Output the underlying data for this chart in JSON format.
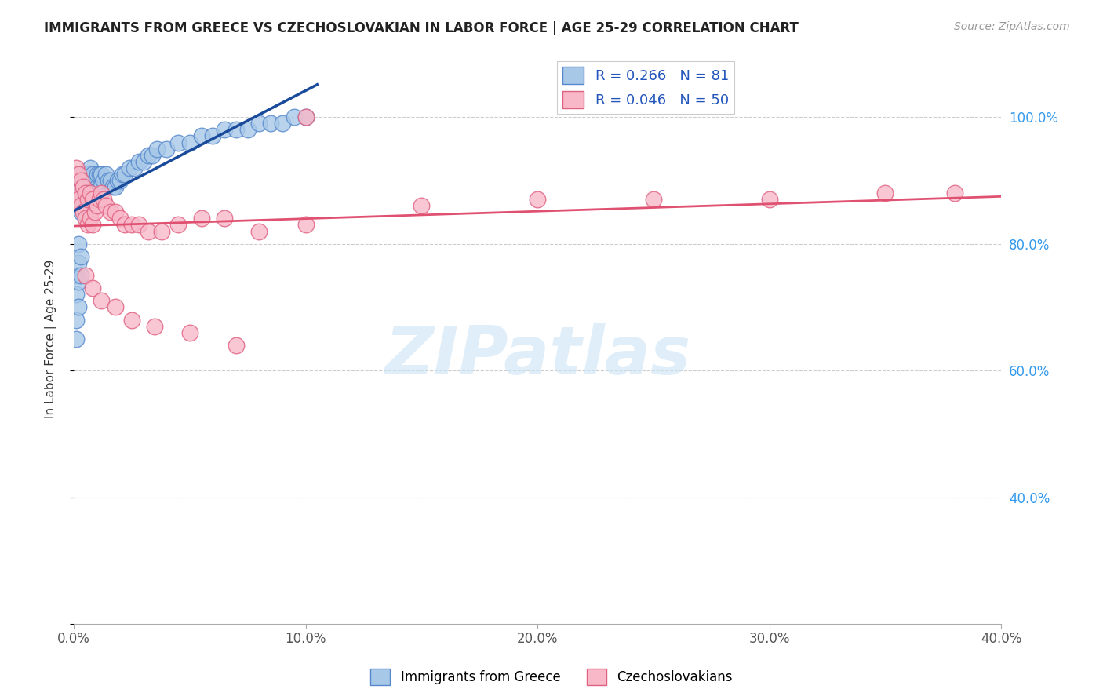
{
  "title": "IMMIGRANTS FROM GREECE VS CZECHOSLOVAKIAN IN LABOR FORCE | AGE 25-29 CORRELATION CHART",
  "source": "Source: ZipAtlas.com",
  "ylabel": "In Labor Force | Age 25-29",
  "xlim": [
    0.0,
    0.4
  ],
  "ylim": [
    0.2,
    1.1
  ],
  "xtick_values": [
    0.0,
    0.1,
    0.2,
    0.3,
    0.4
  ],
  "xtick_labels": [
    "0.0%",
    "10.0%",
    "20.0%",
    "30.0%",
    "40.0%"
  ],
  "ytick_right_values": [
    0.4,
    0.6,
    0.8,
    1.0
  ],
  "ytick_right_labels": [
    "40.0%",
    "60.0%",
    "80.0%",
    "100.0%"
  ],
  "greece_color_face": "#a8c8e8",
  "greece_color_edge": "#5588cc",
  "czech_color_face": "#f8b8c8",
  "czech_color_edge": "#e06080",
  "greece_trendline_color": "#1a4a9a",
  "czech_trendline_color": "#e05070",
  "watermark_text": "ZIPatlas",
  "legend_blue_label": "R = 0.266   N = 81",
  "legend_pink_label": "R = 0.046   N = 50",
  "bottom_legend_blue": "Immigrants from Greece",
  "bottom_legend_pink": "Czechoslovakians",
  "greece_x": [
    0.001,
    0.001,
    0.001,
    0.001,
    0.002,
    0.002,
    0.002,
    0.002,
    0.002,
    0.003,
    0.003,
    0.003,
    0.003,
    0.003,
    0.003,
    0.004,
    0.004,
    0.004,
    0.004,
    0.005,
    0.005,
    0.005,
    0.005,
    0.006,
    0.006,
    0.006,
    0.007,
    0.007,
    0.007,
    0.008,
    0.008,
    0.008,
    0.009,
    0.009,
    0.01,
    0.01,
    0.01,
    0.011,
    0.011,
    0.012,
    0.012,
    0.013,
    0.014,
    0.015,
    0.016,
    0.017,
    0.018,
    0.019,
    0.02,
    0.021,
    0.022,
    0.024,
    0.026,
    0.028,
    0.03,
    0.032,
    0.034,
    0.036,
    0.04,
    0.045,
    0.05,
    0.055,
    0.06,
    0.065,
    0.07,
    0.075,
    0.08,
    0.085,
    0.09,
    0.095,
    0.1,
    0.001,
    0.001,
    0.001,
    0.001,
    0.002,
    0.002,
    0.002,
    0.002,
    0.003,
    0.003
  ],
  "greece_y": [
    0.87,
    0.88,
    0.89,
    0.9,
    0.86,
    0.87,
    0.88,
    0.9,
    0.91,
    0.85,
    0.86,
    0.87,
    0.88,
    0.9,
    0.91,
    0.86,
    0.87,
    0.89,
    0.91,
    0.85,
    0.87,
    0.89,
    0.91,
    0.86,
    0.88,
    0.91,
    0.87,
    0.89,
    0.92,
    0.87,
    0.89,
    0.91,
    0.88,
    0.9,
    0.87,
    0.89,
    0.91,
    0.89,
    0.91,
    0.89,
    0.91,
    0.9,
    0.91,
    0.9,
    0.9,
    0.89,
    0.89,
    0.9,
    0.9,
    0.91,
    0.91,
    0.92,
    0.92,
    0.93,
    0.93,
    0.94,
    0.94,
    0.95,
    0.95,
    0.96,
    0.96,
    0.97,
    0.97,
    0.98,
    0.98,
    0.98,
    0.99,
    0.99,
    0.99,
    1.0,
    1.0,
    0.75,
    0.72,
    0.68,
    0.65,
    0.8,
    0.77,
    0.74,
    0.7,
    0.78,
    0.75
  ],
  "czech_x": [
    0.001,
    0.001,
    0.002,
    0.002,
    0.003,
    0.003,
    0.004,
    0.004,
    0.005,
    0.005,
    0.006,
    0.006,
    0.007,
    0.007,
    0.008,
    0.008,
    0.009,
    0.01,
    0.011,
    0.012,
    0.013,
    0.014,
    0.016,
    0.018,
    0.02,
    0.022,
    0.025,
    0.028,
    0.032,
    0.038,
    0.045,
    0.055,
    0.065,
    0.08,
    0.1,
    0.005,
    0.008,
    0.012,
    0.018,
    0.025,
    0.035,
    0.05,
    0.07,
    0.1,
    0.15,
    0.2,
    0.25,
    0.3,
    0.35,
    0.38
  ],
  "czech_y": [
    0.88,
    0.92,
    0.87,
    0.91,
    0.86,
    0.9,
    0.85,
    0.89,
    0.84,
    0.88,
    0.83,
    0.87,
    0.84,
    0.88,
    0.83,
    0.87,
    0.85,
    0.86,
    0.87,
    0.88,
    0.87,
    0.86,
    0.85,
    0.85,
    0.84,
    0.83,
    0.83,
    0.83,
    0.82,
    0.82,
    0.83,
    0.84,
    0.84,
    0.82,
    1.0,
    0.75,
    0.73,
    0.71,
    0.7,
    0.68,
    0.67,
    0.66,
    0.64,
    0.83,
    0.86,
    0.87,
    0.87,
    0.87,
    0.88,
    0.88
  ]
}
